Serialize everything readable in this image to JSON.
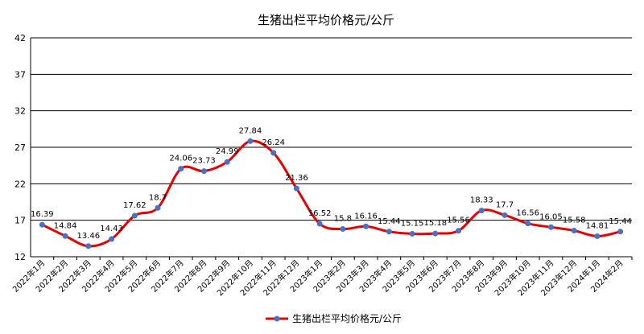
{
  "colors": {
    "line": "#e60000",
    "marker": "#4472c4",
    "grid": "#000000",
    "axis": "#000000"
  },
  "chart_data": {
    "type": "line",
    "title": "生猪出栏平均价格元/公斤",
    "xlabel": "",
    "ylabel": "",
    "ylim": [
      12,
      42
    ],
    "yticks": [
      12,
      17,
      22,
      27,
      32,
      37,
      42
    ],
    "grid": true,
    "legend": "bottom",
    "categories": [
      "2022年1月",
      "2022年2月",
      "2022年3月",
      "2022年4月",
      "2022年5月",
      "2022年6月",
      "2022年7月",
      "2022年8月",
      "2022年9月",
      "2022年10月",
      "2022年11月",
      "2022年12月",
      "2023年1月",
      "2023年2月",
      "2023年3月",
      "2023年4月",
      "2023年5月",
      "2023年6月",
      "2023年7月",
      "2023年8月",
      "2023年9月",
      "2023年10月",
      "2023年11月",
      "2023年12月",
      "2024年1月",
      "2024年2月"
    ],
    "series": [
      {
        "name": "生猪出栏平均价格元/公斤",
        "values": [
          16.39,
          14.84,
          13.46,
          14.43,
          17.62,
          18.7,
          24.06,
          23.73,
          24.99,
          27.84,
          26.24,
          21.36,
          16.52,
          15.8,
          16.16,
          15.44,
          15.15,
          15.18,
          15.56,
          18.33,
          17.7,
          16.56,
          16.05,
          15.58,
          14.81,
          15.44
        ],
        "labels": [
          "16.39",
          "14.84",
          "13.46",
          "14.43",
          "17.62",
          "18.7",
          "24.06",
          "23.73",
          "24.99",
          "27.84",
          "26.24",
          "21.36",
          "16.52",
          "15.8",
          "16.16",
          "15.44",
          "15.15",
          "15.18",
          "15.56",
          "18.33",
          "17.7",
          "16.56",
          "16.05",
          "15.58",
          "14.81",
          "15.44"
        ]
      }
    ]
  }
}
